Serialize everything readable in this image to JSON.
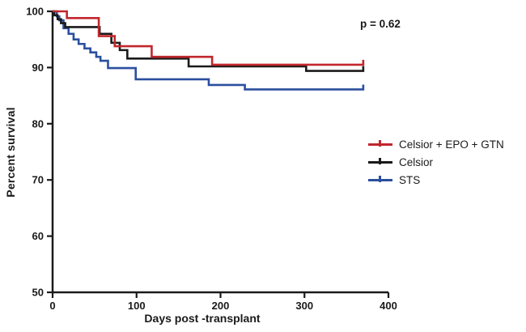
{
  "annotation": {
    "p_value": "p = 0.62"
  },
  "chart_data": {
    "type": "line",
    "subtype": "kaplan-meier-step",
    "title": "",
    "xlabel": "Days post -transplant",
    "ylabel": "Percent survival",
    "xlim": [
      0,
      400
    ],
    "ylim": [
      50,
      100
    ],
    "xticks": [
      0,
      100,
      200,
      300,
      400
    ],
    "yticks": [
      100,
      90,
      80,
      70,
      60,
      50
    ],
    "grid": false,
    "legend_position": "right-middle",
    "annotation": "p = 0.62",
    "follow_up_end_day": 370,
    "axis_color": "#1a1a1a",
    "series": [
      {
        "name": "Celsior + EPO + GTN",
        "color": "#c1272d",
        "points": [
          [
            0,
            100
          ],
          [
            17,
            98.8
          ],
          [
            55,
            95.6
          ],
          [
            74,
            93.8
          ],
          [
            118,
            91.9
          ],
          [
            190,
            90.5
          ]
        ]
      },
      {
        "name": "Celsior",
        "color": "#1a1a1a",
        "points": [
          [
            0,
            100
          ],
          [
            2,
            99.3
          ],
          [
            6,
            98.6
          ],
          [
            10,
            97.9
          ],
          [
            15,
            97.2
          ],
          [
            56,
            96.0
          ],
          [
            70,
            94.4
          ],
          [
            80,
            93.1
          ],
          [
            89,
            91.6
          ],
          [
            162,
            90.2
          ],
          [
            302,
            89.4
          ]
        ]
      },
      {
        "name": "STS",
        "color": "#2b4f9f",
        "points": [
          [
            0,
            100
          ],
          [
            5,
            99.1
          ],
          [
            8,
            98.4
          ],
          [
            13,
            97.0
          ],
          [
            19,
            96.0
          ],
          [
            25,
            95.0
          ],
          [
            31,
            94.2
          ],
          [
            38,
            93.4
          ],
          [
            45,
            92.7
          ],
          [
            52,
            91.9
          ],
          [
            57,
            91.2
          ],
          [
            66,
            89.9
          ],
          [
            99,
            87.9
          ],
          [
            186,
            86.9
          ],
          [
            229,
            86.1
          ]
        ]
      }
    ]
  }
}
